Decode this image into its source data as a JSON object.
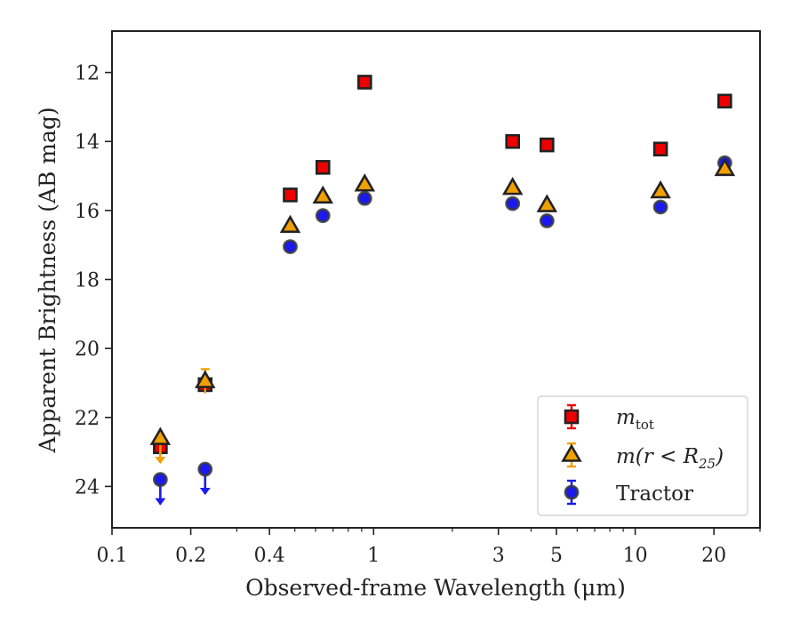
{
  "chart_data": {
    "type": "scatter",
    "xlabel": "Observed-frame Wavelength (μm)",
    "ylabel": "Apparent Brightness (AB mag)",
    "xscale": "log",
    "xlim": [
      0.1,
      30
    ],
    "ylim": [
      25.2,
      10.8
    ],
    "y_inverted": true,
    "xticks": [
      {
        "value": 0.1,
        "label": "0.1"
      },
      {
        "value": 0.2,
        "label": "0.2"
      },
      {
        "value": 0.4,
        "label": "0.4"
      },
      {
        "value": 1,
        "label": "1"
      },
      {
        "value": 3,
        "label": "3"
      },
      {
        "value": 5,
        "label": "5"
      },
      {
        "value": 10,
        "label": "10"
      },
      {
        "value": 20,
        "label": "20"
      }
    ],
    "yticks": [
      {
        "value": 12,
        "label": "12"
      },
      {
        "value": 14,
        "label": "14"
      },
      {
        "value": 16,
        "label": "16"
      },
      {
        "value": 18,
        "label": "18"
      },
      {
        "value": 20,
        "label": "20"
      },
      {
        "value": 22,
        "label": "22"
      },
      {
        "value": 24,
        "label": "24"
      }
    ],
    "grid": false,
    "legend_position": "lower-right",
    "series": [
      {
        "name": "m_tot",
        "legend_main": "m",
        "legend_sub": "tot",
        "marker": "square",
        "color": "#ee0000",
        "points": [
          {
            "x": 0.153,
            "y": 22.85
          },
          {
            "x": 0.227,
            "y": 21.05
          },
          {
            "x": 0.48,
            "y": 15.55
          },
          {
            "x": 0.64,
            "y": 14.75
          },
          {
            "x": 0.925,
            "y": 12.28
          },
          {
            "x": 3.4,
            "y": 14.0
          },
          {
            "x": 4.6,
            "y": 14.1
          },
          {
            "x": 12.5,
            "y": 14.22
          },
          {
            "x": 22.0,
            "y": 12.83
          }
        ]
      },
      {
        "name": "m(r < R25)",
        "legend_main": "m(r < R",
        "legend_sub": "25",
        "legend_tail": ")",
        "marker": "triangle",
        "color": "#f0a000",
        "points": [
          {
            "x": 0.153,
            "y": 22.6,
            "upper_limit": true
          },
          {
            "x": 0.227,
            "y": 20.95,
            "err": 0.35
          },
          {
            "x": 0.48,
            "y": 16.45
          },
          {
            "x": 0.64,
            "y": 15.6
          },
          {
            "x": 0.925,
            "y": 15.25
          },
          {
            "x": 3.4,
            "y": 15.35
          },
          {
            "x": 4.6,
            "y": 15.85
          },
          {
            "x": 12.5,
            "y": 15.45
          },
          {
            "x": 22.0,
            "y": 14.8
          }
        ]
      },
      {
        "name": "Tractor",
        "legend_main": "Tractor",
        "marker": "circle",
        "color": "#1a1aee",
        "points": [
          {
            "x": 0.153,
            "y": 23.8,
            "upper_limit": true
          },
          {
            "x": 0.227,
            "y": 23.5,
            "upper_limit": true
          },
          {
            "x": 0.48,
            "y": 17.05
          },
          {
            "x": 0.64,
            "y": 16.15
          },
          {
            "x": 0.925,
            "y": 15.65
          },
          {
            "x": 3.4,
            "y": 15.8
          },
          {
            "x": 4.6,
            "y": 16.3
          },
          {
            "x": 12.5,
            "y": 15.9
          },
          {
            "x": 22.0,
            "y": 14.62
          }
        ]
      }
    ]
  }
}
